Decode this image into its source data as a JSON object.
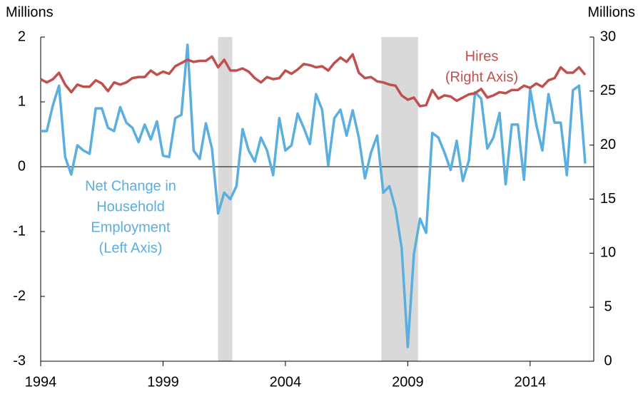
{
  "chart_data": {
    "type": "line",
    "y_unit_left": "Millions",
    "y_unit_right": "Millions",
    "x": [
      1994,
      1994.25,
      1994.5,
      1994.75,
      1995,
      1995.25,
      1995.5,
      1995.75,
      1996,
      1996.25,
      1996.5,
      1996.75,
      1997,
      1997.25,
      1997.5,
      1997.75,
      1998,
      1998.25,
      1998.5,
      1998.75,
      1999,
      1999.25,
      1999.5,
      1999.75,
      2000,
      2000.25,
      2000.5,
      2000.75,
      2001,
      2001.25,
      2001.5,
      2001.75,
      2002,
      2002.25,
      2002.5,
      2002.75,
      2003,
      2003.25,
      2003.5,
      2003.75,
      2004,
      2004.25,
      2004.5,
      2004.75,
      2005,
      2005.25,
      2005.5,
      2005.75,
      2006,
      2006.25,
      2006.5,
      2006.75,
      2007,
      2007.25,
      2007.5,
      2007.75,
      2008,
      2008.25,
      2008.5,
      2008.75,
      2009,
      2009.25,
      2009.5,
      2009.75,
      2010,
      2010.25,
      2010.5,
      2010.75,
      2011,
      2011.25,
      2011.5,
      2011.75,
      2012,
      2012.25,
      2012.5,
      2012.75,
      2013,
      2013.25,
      2013.5,
      2013.75,
      2014,
      2014.25,
      2014.5,
      2014.75,
      2015,
      2015.25,
      2015.5,
      2015.75,
      2016,
      2016.25
    ],
    "series": [
      {
        "name_lines": [
          "Net Change in",
          "Household",
          "Employment",
          "(Left Axis)"
        ],
        "color": "#5aaee0",
        "axis": "y",
        "values": [
          0.55,
          0.55,
          0.95,
          1.25,
          0.15,
          -0.12,
          0.33,
          0.25,
          0.2,
          0.9,
          0.9,
          0.6,
          0.55,
          0.92,
          0.68,
          0.6,
          0.38,
          0.65,
          0.42,
          0.7,
          0.17,
          0.15,
          0.75,
          0.8,
          1.88,
          0.25,
          0.12,
          0.67,
          0.28,
          -0.72,
          -0.4,
          -0.5,
          -0.3,
          0.58,
          0.25,
          0.08,
          0.45,
          0.25,
          -0.13,
          0.75,
          0.25,
          0.33,
          0.82,
          0.6,
          0.35,
          1.12,
          0.88,
          0.02,
          0.75,
          0.88,
          0.48,
          0.87,
          0.45,
          -0.18,
          0.22,
          0.48,
          -0.4,
          -0.3,
          -0.65,
          -1.25,
          -2.78,
          -1.35,
          -0.8,
          -1.02,
          0.52,
          0.45,
          0.22,
          -0.05,
          0.4,
          -0.22,
          0.1,
          1.15,
          1.05,
          0.28,
          0.45,
          0.83,
          -0.27,
          0.65,
          0.65,
          -0.2,
          1.2,
          0.65,
          0.25,
          1.12,
          0.68,
          0.68,
          -0.13,
          1.18,
          1.25,
          0.05
        ]
      },
      {
        "name_lines": [
          "Hires",
          "(Right Axis)"
        ],
        "color": "#c0504d",
        "axis": "y2",
        "values": [
          26.1,
          25.8,
          26.1,
          26.7,
          25.6,
          24.9,
          25.6,
          25.4,
          25.4,
          26.0,
          25.7,
          25.0,
          25.8,
          25.6,
          25.8,
          26.2,
          26.3,
          26.3,
          26.9,
          26.5,
          26.8,
          26.6,
          27.3,
          27.6,
          27.9,
          27.7,
          27.8,
          27.8,
          28.2,
          27.2,
          27.9,
          26.9,
          26.9,
          27.1,
          26.8,
          26.2,
          25.8,
          26.3,
          26.1,
          26.2,
          26.9,
          26.6,
          27.0,
          27.5,
          27.4,
          27.2,
          27.3,
          26.9,
          27.6,
          28.1,
          27.7,
          28.4,
          26.7,
          26.2,
          26.3,
          25.9,
          25.8,
          25.6,
          25.5,
          24.6,
          24.2,
          24.4,
          23.6,
          23.7,
          25.1,
          24.3,
          24.6,
          24.5,
          24.1,
          24.4,
          24.7,
          24.8,
          25.2,
          24.4,
          24.6,
          24.9,
          24.8,
          25.1,
          25.1,
          25.5,
          25.3,
          25.7,
          25.4,
          26.0,
          26.2,
          27.2,
          26.7,
          26.7,
          27.2,
          26.5
        ]
      }
    ],
    "recessions": [
      [
        2001.25,
        2001.83
      ],
      [
        2007.92,
        2009.42
      ]
    ],
    "recession_color": "#d9d9d9",
    "xlim": [
      1994,
      2016.6
    ],
    "xticks": [
      1994,
      1999,
      2004,
      2009,
      2014
    ],
    "ylim": [
      -3,
      2
    ],
    "yticks": [
      -3,
      -2,
      -1,
      0,
      1,
      2
    ],
    "y2lim": [
      0,
      30
    ],
    "y2ticks": [
      0,
      5,
      10,
      15,
      20,
      25,
      30
    ],
    "zero_line": 0
  }
}
